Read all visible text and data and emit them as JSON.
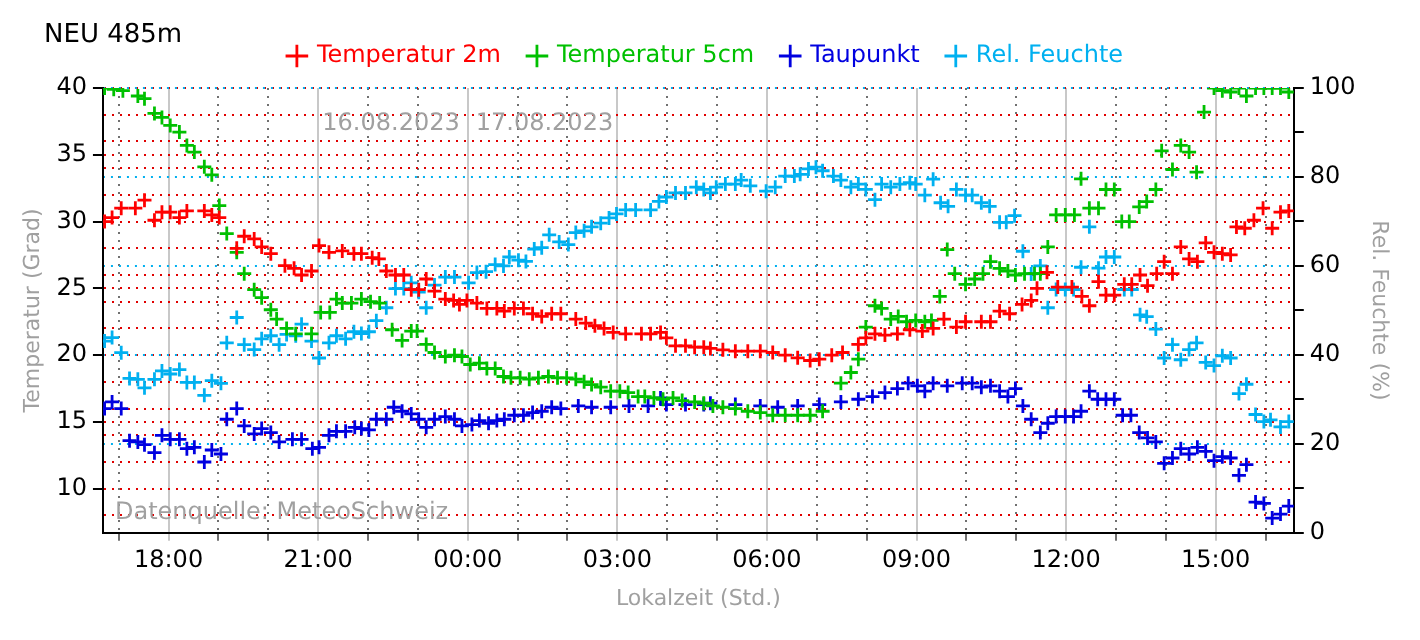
{
  "chart_data": {
    "type": "scatter",
    "title": "NEU 485m",
    "ylabel": "Temperatur (Grad)",
    "y2label": "Rel. Feuchte (%)",
    "xlabel": "Lokalzeit (Std.)",
    "annotations": [
      "16.08.2023",
      "17.08.2023",
      "Datenquelle: MeteoSchweiz"
    ],
    "marker": "cross",
    "grid": true,
    "legend": "top",
    "xlim": [
      "2023-08-16T16:41",
      "2023-08-17T16:34"
    ],
    "xticks": [
      {
        "value": "2023-08-16T17:00",
        "label": null
      },
      {
        "value": "2023-08-16T18:00",
        "label": "18:00"
      },
      {
        "value": "2023-08-16T19:00",
        "label": null
      },
      {
        "value": "2023-08-16T20:00",
        "label": null
      },
      {
        "value": "2023-08-16T21:00",
        "label": "21:00"
      },
      {
        "value": "2023-08-16T22:00",
        "label": null
      },
      {
        "value": "2023-08-16T23:00",
        "label": null
      },
      {
        "value": "2023-08-17T00:00",
        "label": "00:00"
      },
      {
        "value": "2023-08-17T01:00",
        "label": null
      },
      {
        "value": "2023-08-17T02:00",
        "label": null
      },
      {
        "value": "2023-08-17T03:00",
        "label": "03:00"
      },
      {
        "value": "2023-08-17T04:00",
        "label": null
      },
      {
        "value": "2023-08-17T05:00",
        "label": null
      },
      {
        "value": "2023-08-17T06:00",
        "label": "06:00"
      },
      {
        "value": "2023-08-17T07:00",
        "label": null
      },
      {
        "value": "2023-08-17T08:00",
        "label": null
      },
      {
        "value": "2023-08-17T09:00",
        "label": "09:00"
      },
      {
        "value": "2023-08-17T10:00",
        "label": null
      },
      {
        "value": "2023-08-17T11:00",
        "label": null
      },
      {
        "value": "2023-08-17T12:00",
        "label": "12:00"
      },
      {
        "value": "2023-08-17T13:00",
        "label": null
      },
      {
        "value": "2023-08-17T14:00",
        "label": null
      },
      {
        "value": "2023-08-17T15:00",
        "label": "15:00"
      },
      {
        "value": "2023-08-17T16:00",
        "label": null
      }
    ],
    "ylim": [
      6.7,
      40
    ],
    "yticks": [
      {
        "value": 8,
        "label": null
      },
      10,
      {
        "value": 12,
        "label": null
      },
      {
        "value": 14,
        "label": null
      },
      15,
      {
        "value": 16,
        "label": null
      },
      {
        "value": 18,
        "label": null
      },
      20,
      {
        "value": 22,
        "label": null
      },
      {
        "value": 24,
        "label": null
      },
      25,
      {
        "value": 26,
        "label": null
      },
      {
        "value": 28,
        "label": null
      },
      30,
      {
        "value": 32,
        "label": null
      },
      {
        "value": 34,
        "label": null
      },
      35,
      {
        "value": 36,
        "label": null
      },
      {
        "value": 38,
        "label": null
      },
      40
    ],
    "y2lim": [
      0,
      100
    ],
    "y2ticks": [
      0,
      {
        "value": 10,
        "label": null
      },
      20,
      {
        "value": 30,
        "label": null
      },
      40,
      {
        "value": 50,
        "label": null
      },
      60,
      {
        "value": 70,
        "label": null
      },
      80,
      {
        "value": 90,
        "label": null
      },
      100
    ],
    "series": [
      {
        "name": "Temperatur 2m",
        "color": "#ff0000",
        "x": [
          "2023-08-16T16:43",
          "2023-08-16T16:52",
          "2023-08-16T17:03",
          "2023-08-16T17:20",
          "2023-08-16T17:31",
          "2023-08-16T17:43",
          "2023-08-16T17:52",
          "2023-08-16T18:02",
          "2023-08-16T18:13",
          "2023-08-16T18:22",
          "2023-08-16T18:43",
          "2023-08-16T18:52",
          "2023-08-16T19:01",
          "2023-08-16T19:22",
          "2023-08-16T19:31",
          "2023-08-16T19:43",
          "2023-08-16T19:52",
          "2023-08-16T20:03",
          "2023-08-16T20:20",
          "2023-08-16T20:31",
          "2023-08-16T20:40",
          "2023-08-16T20:52",
          "2023-08-16T21:01",
          "2023-08-16T21:13",
          "2023-08-16T21:29",
          "2023-08-16T21:43",
          "2023-08-16T21:52",
          "2023-08-16T22:05",
          "2023-08-16T22:13",
          "2023-08-16T22:22",
          "2023-08-16T22:33",
          "2023-08-16T22:43",
          "2023-08-16T22:52",
          "2023-08-16T23:01",
          "2023-08-16T23:10",
          "2023-08-16T23:20",
          "2023-08-16T23:33",
          "2023-08-16T23:43",
          "2023-08-16T23:50",
          "2023-08-16T23:59",
          "2023-08-17T00:11",
          "2023-08-17T00:23",
          "2023-08-17T00:35",
          "2023-08-17T00:44",
          "2023-08-17T00:56",
          "2023-08-17T01:07",
          "2023-08-17T01:18",
          "2023-08-17T01:29",
          "2023-08-17T01:41",
          "2023-08-17T01:52",
          "2023-08-17T02:10",
          "2023-08-17T02:22",
          "2023-08-17T02:33",
          "2023-08-17T02:44",
          "2023-08-17T02:55",
          "2023-08-17T03:10",
          "2023-08-17T03:29",
          "2023-08-17T03:40",
          "2023-08-17T03:52",
          "2023-08-17T03:59",
          "2023-08-17T04:10",
          "2023-08-17T04:22",
          "2023-08-17T04:33",
          "2023-08-17T04:44",
          "2023-08-17T04:52",
          "2023-08-17T05:07",
          "2023-08-17T05:22",
          "2023-08-17T05:37",
          "2023-08-17T05:52",
          "2023-08-17T06:07",
          "2023-08-17T06:22",
          "2023-08-17T06:37",
          "2023-08-17T06:52",
          "2023-08-17T07:03",
          "2023-08-17T07:18",
          "2023-08-17T07:31",
          "2023-08-17T07:50",
          "2023-08-17T07:59",
          "2023-08-17T08:10",
          "2023-08-17T08:22",
          "2023-08-17T08:37",
          "2023-08-17T08:52",
          "2023-08-17T09:07",
          "2023-08-17T09:20",
          "2023-08-17T09:33",
          "2023-08-17T09:48",
          "2023-08-17T09:59",
          "2023-08-17T10:18",
          "2023-08-17T10:29",
          "2023-08-17T10:40",
          "2023-08-17T10:52",
          "2023-08-17T11:07",
          "2023-08-17T11:18",
          "2023-08-17T11:25",
          "2023-08-17T11:37",
          "2023-08-17T11:50",
          "2023-08-17T12:07",
          "2023-08-17T12:19",
          "2023-08-17T12:28",
          "2023-08-17T12:39",
          "2023-08-17T12:48",
          "2023-08-17T12:58",
          "2023-08-17T13:10",
          "2023-08-17T13:19",
          "2023-08-17T13:29",
          "2023-08-17T13:38",
          "2023-08-17T13:49",
          "2023-08-17T13:58",
          "2023-08-17T14:08",
          "2023-08-17T14:18",
          "2023-08-17T14:28",
          "2023-08-17T14:38",
          "2023-08-17T14:48",
          "2023-08-17T14:58",
          "2023-08-17T15:08",
          "2023-08-17T15:18",
          "2023-08-17T15:25",
          "2023-08-17T15:35",
          "2023-08-17T15:46",
          "2023-08-17T15:57",
          "2023-08-17T16:08",
          "2023-08-17T16:18",
          "2023-08-17T16:28"
        ],
        "values": [
          30.0,
          30.3,
          31.0,
          31.0,
          31.6,
          30.1,
          30.7,
          30.7,
          30.3,
          30.8,
          30.8,
          30.5,
          30.3,
          28.0,
          28.9,
          28.7,
          28.1,
          27.6,
          26.7,
          26.5,
          26.0,
          26.3,
          28.2,
          27.7,
          27.8,
          27.6,
          27.6,
          27.3,
          27.2,
          26.3,
          26.0,
          26.0,
          24.9,
          24.9,
          25.7,
          24.8,
          24.2,
          24.1,
          23.8,
          24.1,
          23.9,
          23.5,
          23.5,
          23.3,
          23.5,
          23.5,
          23.1,
          22.9,
          23.1,
          23.1,
          22.7,
          22.4,
          22.2,
          22.0,
          21.7,
          21.6,
          21.6,
          21.6,
          21.7,
          21.3,
          20.7,
          20.7,
          20.6,
          20.6,
          20.5,
          20.4,
          20.3,
          20.3,
          20.3,
          20.2,
          20.0,
          19.8,
          19.6,
          19.7,
          20.0,
          20.2,
          20.8,
          21.3,
          21.6,
          21.5,
          21.6,
          21.9,
          21.8,
          22.0,
          22.7,
          22.1,
          22.5,
          22.5,
          22.5,
          23.3,
          23.1,
          23.8,
          24.1,
          25.0,
          26.2,
          25.1,
          25.1,
          24.4,
          23.7,
          25.5,
          24.5,
          24.5,
          25.3,
          25.3,
          26.0,
          25.2,
          26.1,
          27.0,
          26.1,
          28.1,
          27.2,
          27.0,
          28.4,
          27.7,
          27.6,
          27.5,
          29.6,
          29.5,
          30.1,
          31.0,
          29.5,
          30.7,
          30.8
        ]
      },
      {
        "name": "Temperatur 5cm",
        "color": "#00c000",
        "x": [
          "2023-08-16T16:43",
          "2023-08-16T16:54",
          "2023-08-16T17:05",
          "2023-08-16T17:23",
          "2023-08-16T17:31",
          "2023-08-16T17:43",
          "2023-08-16T17:52",
          "2023-08-16T18:02",
          "2023-08-16T18:13",
          "2023-08-16T18:22",
          "2023-08-16T18:31",
          "2023-08-16T18:43",
          "2023-08-16T18:52",
          "2023-08-16T19:01",
          "2023-08-16T19:10",
          "2023-08-16T19:22",
          "2023-08-16T19:31",
          "2023-08-16T19:43",
          "2023-08-16T19:52",
          "2023-08-16T20:03",
          "2023-08-16T20:10",
          "2023-08-16T20:22",
          "2023-08-16T20:33",
          "2023-08-16T20:52",
          "2023-08-16T21:03",
          "2023-08-16T21:14",
          "2023-08-16T21:22",
          "2023-08-16T21:29",
          "2023-08-16T21:40",
          "2023-08-16T21:52",
          "2023-08-16T22:03",
          "2023-08-16T22:14",
          "2023-08-16T22:29",
          "2023-08-16T22:41",
          "2023-08-16T22:52",
          "2023-08-16T22:59",
          "2023-08-16T23:10",
          "2023-08-16T23:20",
          "2023-08-16T23:33",
          "2023-08-16T23:44",
          "2023-08-16T23:53",
          "2023-08-17T00:03",
          "2023-08-17T00:14",
          "2023-08-17T00:23",
          "2023-08-17T00:33",
          "2023-08-17T00:43",
          "2023-08-17T00:52",
          "2023-08-17T01:03",
          "2023-08-17T01:14",
          "2023-08-17T01:25",
          "2023-08-17T01:37",
          "2023-08-17T01:48",
          "2023-08-17T01:59",
          "2023-08-17T02:10",
          "2023-08-17T02:20",
          "2023-08-17T02:29",
          "2023-08-17T02:40",
          "2023-08-17T02:52",
          "2023-08-17T03:03",
          "2023-08-17T03:13",
          "2023-08-17T03:25",
          "2023-08-17T03:33",
          "2023-08-17T03:44",
          "2023-08-17T03:55",
          "2023-08-17T04:07",
          "2023-08-17T04:18",
          "2023-08-17T04:33",
          "2023-08-17T04:44",
          "2023-08-17T04:55",
          "2023-08-17T05:07",
          "2023-08-17T05:22",
          "2023-08-17T05:37",
          "2023-08-17T05:52",
          "2023-08-17T06:07",
          "2023-08-17T06:22",
          "2023-08-17T06:37",
          "2023-08-17T06:52",
          "2023-08-17T07:07",
          "2023-08-17T07:29",
          "2023-08-17T07:41",
          "2023-08-17T07:50",
          "2023-08-17T07:59",
          "2023-08-17T08:10",
          "2023-08-17T08:18",
          "2023-08-17T08:29",
          "2023-08-17T08:38",
          "2023-08-17T08:48",
          "2023-08-17T08:59",
          "2023-08-17T09:10",
          "2023-08-17T09:18",
          "2023-08-17T09:28",
          "2023-08-17T09:37",
          "2023-08-17T09:46",
          "2023-08-17T09:59",
          "2023-08-17T10:10",
          "2023-08-17T10:20",
          "2023-08-17T10:29",
          "2023-08-17T10:40",
          "2023-08-17T10:50",
          "2023-08-17T10:59",
          "2023-08-17T11:10",
          "2023-08-17T11:22",
          "2023-08-17T11:29",
          "2023-08-17T11:38",
          "2023-08-17T11:48",
          "2023-08-17T11:59",
          "2023-08-17T12:10",
          "2023-08-17T12:18",
          "2023-08-17T12:28",
          "2023-08-17T12:39",
          "2023-08-17T12:48",
          "2023-08-17T12:58",
          "2023-08-17T13:07",
          "2023-08-17T13:16",
          "2023-08-17T13:28",
          "2023-08-17T13:37",
          "2023-08-17T13:48",
          "2023-08-17T13:55",
          "2023-08-17T14:08",
          "2023-08-17T14:18",
          "2023-08-17T14:28",
          "2023-08-17T14:37",
          "2023-08-17T14:46",
          "2023-08-17T14:58",
          "2023-08-17T15:08",
          "2023-08-17T15:18",
          "2023-08-17T15:28",
          "2023-08-17T15:37",
          "2023-08-17T15:48",
          "2023-08-17T15:58",
          "2023-08-17T16:08",
          "2023-08-17T16:18",
          "2023-08-17T16:28"
        ],
        "values": [
          40.0,
          39.9,
          39.8,
          39.4,
          39.2,
          38.1,
          37.8,
          37.2,
          36.7,
          35.7,
          35.2,
          34.1,
          33.5,
          31.2,
          29.1,
          27.7,
          26.1,
          24.9,
          24.3,
          23.4,
          22.7,
          22.0,
          21.6,
          21.6,
          23.2,
          23.2,
          24.2,
          23.9,
          23.9,
          24.2,
          24.0,
          23.9,
          21.9,
          21.1,
          21.8,
          21.8,
          20.8,
          20.2,
          19.9,
          20.0,
          19.9,
          19.3,
          19.4,
          19.0,
          19.0,
          18.4,
          18.3,
          18.3,
          18.2,
          18.3,
          18.4,
          18.3,
          18.3,
          18.2,
          18.0,
          17.8,
          17.6,
          17.3,
          17.3,
          17.2,
          16.9,
          16.9,
          16.8,
          16.7,
          16.8,
          16.6,
          16.5,
          16.4,
          16.2,
          16.1,
          16.0,
          15.8,
          15.7,
          15.5,
          15.5,
          15.5,
          15.5,
          15.8,
          17.9,
          18.7,
          19.7,
          22.1,
          23.7,
          23.5,
          22.7,
          22.9,
          22.5,
          22.6,
          22.5,
          22.6,
          24.4,
          27.9,
          26.1,
          25.3,
          25.7,
          26.1,
          27.0,
          26.5,
          26.3,
          26.0,
          26.1,
          26.1,
          26.1,
          28.1,
          30.5,
          30.5,
          30.5,
          33.2,
          31.0,
          31.0,
          32.4,
          32.4,
          30.0,
          30.0,
          31.1,
          31.5,
          32.4,
          35.3,
          33.9,
          35.7,
          35.2,
          33.7,
          38.2,
          40.0,
          39.8,
          39.7,
          40.0,
          39.4,
          40.0,
          40.0,
          40.0,
          40.0,
          39.7
        ]
      },
      {
        "name": "Taupunkt",
        "color": "#0000e0",
        "x": [
          "2023-08-16T16:43",
          "2023-08-16T16:52",
          "2023-08-16T17:03",
          "2023-08-16T17:13",
          "2023-08-16T17:23",
          "2023-08-16T17:31",
          "2023-08-16T17:43",
          "2023-08-16T17:52",
          "2023-08-16T18:02",
          "2023-08-16T18:13",
          "2023-08-16T18:22",
          "2023-08-16T18:31",
          "2023-08-16T18:43",
          "2023-08-16T18:52",
          "2023-08-16T19:03",
          "2023-08-16T19:10",
          "2023-08-16T19:22",
          "2023-08-16T19:31",
          "2023-08-16T19:43",
          "2023-08-16T19:52",
          "2023-08-16T20:03",
          "2023-08-16T20:13",
          "2023-08-16T20:29",
          "2023-08-16T20:40",
          "2023-08-16T20:53",
          "2023-08-16T21:01",
          "2023-08-16T21:13",
          "2023-08-16T21:22",
          "2023-08-16T21:33",
          "2023-08-16T21:44",
          "2023-08-16T21:52",
          "2023-08-16T22:01",
          "2023-08-16T22:10",
          "2023-08-16T22:22",
          "2023-08-16T22:31",
          "2023-08-16T22:41",
          "2023-08-16T22:52",
          "2023-08-16T23:01",
          "2023-08-16T23:10",
          "2023-08-16T23:20",
          "2023-08-16T23:33",
          "2023-08-16T23:44",
          "2023-08-16T23:53",
          "2023-08-17T00:05",
          "2023-08-17T00:14",
          "2023-08-17T00:25",
          "2023-08-17T00:35",
          "2023-08-17T00:44",
          "2023-08-17T00:56",
          "2023-08-17T01:07",
          "2023-08-17T01:18",
          "2023-08-17T01:29",
          "2023-08-17T01:41",
          "2023-08-17T01:52",
          "2023-08-17T02:13",
          "2023-08-17T02:29",
          "2023-08-17T02:52",
          "2023-08-17T03:14",
          "2023-08-17T03:37",
          "2023-08-17T03:52",
          "2023-08-17T03:59",
          "2023-08-17T04:22",
          "2023-08-17T04:44",
          "2023-08-17T04:52",
          "2023-08-17T05:22",
          "2023-08-17T05:52",
          "2023-08-17T06:13",
          "2023-08-17T06:37",
          "2023-08-17T07:03",
          "2023-08-17T07:29",
          "2023-08-17T07:50",
          "2023-08-17T08:07",
          "2023-08-17T08:22",
          "2023-08-17T08:37",
          "2023-08-17T08:50",
          "2023-08-17T09:01",
          "2023-08-17T09:10",
          "2023-08-17T09:20",
          "2023-08-17T09:37",
          "2023-08-17T09:55",
          "2023-08-17T10:07",
          "2023-08-17T10:18",
          "2023-08-17T10:29",
          "2023-08-17T10:40",
          "2023-08-17T10:50",
          "2023-08-17T10:59",
          "2023-08-17T11:08",
          "2023-08-17T11:18",
          "2023-08-17T11:29",
          "2023-08-17T11:38",
          "2023-08-17T11:48",
          "2023-08-17T11:59",
          "2023-08-17T12:09",
          "2023-08-17T12:18",
          "2023-08-17T12:28",
          "2023-08-17T12:38",
          "2023-08-17T12:48",
          "2023-08-17T12:58",
          "2023-08-17T13:08",
          "2023-08-17T13:18",
          "2023-08-17T13:28",
          "2023-08-17T13:38",
          "2023-08-17T13:48",
          "2023-08-17T13:58",
          "2023-08-17T14:08",
          "2023-08-17T14:18",
          "2023-08-17T14:28",
          "2023-08-17T14:38",
          "2023-08-17T14:48",
          "2023-08-17T14:58",
          "2023-08-17T15:08",
          "2023-08-17T15:18",
          "2023-08-17T15:28",
          "2023-08-17T15:37",
          "2023-08-17T15:48",
          "2023-08-17T15:58",
          "2023-08-17T16:08",
          "2023-08-17T16:18",
          "2023-08-17T16:28"
        ],
        "values": [
          16.0,
          16.5,
          16.0,
          13.6,
          13.5,
          13.3,
          12.7,
          14.0,
          13.7,
          13.7,
          13.0,
          13.1,
          12.0,
          12.9,
          12.6,
          15.2,
          16.0,
          14.7,
          14.1,
          14.5,
          14.2,
          13.5,
          13.7,
          13.7,
          13.0,
          13.1,
          14.0,
          14.3,
          14.3,
          14.6,
          14.5,
          14.4,
          15.2,
          15.2,
          16.1,
          15.8,
          15.6,
          15.2,
          14.6,
          15.2,
          15.4,
          15.2,
          14.7,
          14.8,
          15.1,
          14.9,
          15.1,
          15.2,
          15.5,
          15.5,
          15.7,
          15.8,
          16.1,
          16.0,
          16.2,
          16.1,
          16.1,
          16.2,
          16.2,
          16.8,
          16.3,
          16.3,
          16.3,
          16.4,
          16.3,
          16.2,
          16.1,
          16.2,
          16.3,
          16.5,
          16.7,
          16.9,
          17.2,
          17.5,
          17.9,
          17.7,
          17.3,
          17.9,
          17.7,
          17.9,
          17.9,
          17.6,
          17.7,
          17.3,
          16.9,
          17.5,
          16.2,
          15.2,
          14.2,
          14.9,
          15.4,
          15.4,
          15.4,
          15.8,
          17.3,
          16.7,
          16.7,
          16.7,
          15.5,
          15.5,
          14.2,
          13.8,
          13.5,
          11.9,
          12.3,
          13.0,
          12.6,
          13.1,
          12.8,
          12.1,
          12.4,
          12.3,
          11.0,
          11.8,
          9.0,
          8.9,
          7.8,
          8.1,
          8.7
        ]
      },
      {
        "name": "Rel. Feuchte",
        "color": "#00b0f0",
        "axis": "y2",
        "x": [
          "2023-08-16T16:43",
          "2023-08-16T16:52",
          "2023-08-16T17:03",
          "2023-08-16T17:13",
          "2023-08-16T17:23",
          "2023-08-16T17:31",
          "2023-08-16T17:43",
          "2023-08-16T17:52",
          "2023-08-16T18:02",
          "2023-08-16T18:13",
          "2023-08-16T18:22",
          "2023-08-16T18:31",
          "2023-08-16T18:43",
          "2023-08-16T18:52",
          "2023-08-16T19:03",
          "2023-08-16T19:10",
          "2023-08-16T19:22",
          "2023-08-16T19:31",
          "2023-08-16T19:43",
          "2023-08-16T19:52",
          "2023-08-16T20:03",
          "2023-08-16T20:13",
          "2023-08-16T20:22",
          "2023-08-16T20:33",
          "2023-08-16T20:40",
          "2023-08-16T20:52",
          "2023-08-16T21:01",
          "2023-08-16T21:13",
          "2023-08-16T21:22",
          "2023-08-16T21:33",
          "2023-08-16T21:43",
          "2023-08-16T21:52",
          "2023-08-16T22:01",
          "2023-08-16T22:10",
          "2023-08-16T22:22",
          "2023-08-16T22:33",
          "2023-08-16T22:43",
          "2023-08-16T22:52",
          "2023-08-16T23:01",
          "2023-08-16T23:10",
          "2023-08-16T23:20",
          "2023-08-16T23:33",
          "2023-08-16T23:44",
          "2023-08-17T00:01",
          "2023-08-17T00:11",
          "2023-08-17T00:22",
          "2023-08-17T00:33",
          "2023-08-17T00:43",
          "2023-08-17T00:50",
          "2023-08-17T01:01",
          "2023-08-17T01:10",
          "2023-08-17T01:20",
          "2023-08-17T01:29",
          "2023-08-17T01:38",
          "2023-08-17T01:50",
          "2023-08-17T02:01",
          "2023-08-17T02:10",
          "2023-08-17T02:20",
          "2023-08-17T02:29",
          "2023-08-17T02:40",
          "2023-08-17T02:50",
          "2023-08-17T02:59",
          "2023-08-17T03:10",
          "2023-08-17T03:22",
          "2023-08-17T03:40",
          "2023-08-17T03:50",
          "2023-08-17T03:59",
          "2023-08-17T04:10",
          "2023-08-17T04:22",
          "2023-08-17T04:35",
          "2023-08-17T04:44",
          "2023-08-17T04:52",
          "2023-08-17T04:59",
          "2023-08-17T05:10",
          "2023-08-17T05:22",
          "2023-08-17T05:29",
          "2023-08-17T05:40",
          "2023-08-17T05:59",
          "2023-08-17T06:10",
          "2023-08-17T06:22",
          "2023-08-17T06:33",
          "2023-08-17T06:40",
          "2023-08-17T06:50",
          "2023-08-17T06:59",
          "2023-08-17T07:07",
          "2023-08-17T07:20",
          "2023-08-17T07:29",
          "2023-08-17T07:41",
          "2023-08-17T07:50",
          "2023-08-17T07:59",
          "2023-08-17T08:10",
          "2023-08-17T08:18",
          "2023-08-17T08:29",
          "2023-08-17T08:40",
          "2023-08-17T08:52",
          "2023-08-17T08:59",
          "2023-08-17T09:10",
          "2023-08-17T09:20",
          "2023-08-17T09:29",
          "2023-08-17T09:38",
          "2023-08-17T09:48",
          "2023-08-17T09:59",
          "2023-08-17T10:07",
          "2023-08-17T10:18",
          "2023-08-17T10:28",
          "2023-08-17T10:40",
          "2023-08-17T10:48",
          "2023-08-17T10:58",
          "2023-08-17T11:08",
          "2023-08-17T11:18",
          "2023-08-17T11:29",
          "2023-08-17T11:38",
          "2023-08-17T11:48",
          "2023-08-17T11:59",
          "2023-08-17T12:09",
          "2023-08-17T12:18",
          "2023-08-17T12:28",
          "2023-08-17T12:39",
          "2023-08-17T12:48",
          "2023-08-17T12:58",
          "2023-08-17T13:10",
          "2023-08-17T13:19",
          "2023-08-17T13:29",
          "2023-08-17T13:37",
          "2023-08-17T13:48",
          "2023-08-17T13:58",
          "2023-08-17T14:08",
          "2023-08-17T14:18",
          "2023-08-17T14:28",
          "2023-08-17T14:37",
          "2023-08-17T14:48",
          "2023-08-17T14:58",
          "2023-08-17T15:08",
          "2023-08-17T15:18",
          "2023-08-17T15:28",
          "2023-08-17T15:37",
          "2023-08-17T15:48",
          "2023-08-17T15:58",
          "2023-08-17T16:06",
          "2023-08-17T16:18",
          "2023-08-17T16:28"
        ],
        "values": [
          43.1,
          43.9,
          40.5,
          34.7,
          34.5,
          32.6,
          34.5,
          36.4,
          35.7,
          36.7,
          33.8,
          33.8,
          30.9,
          34.2,
          33.6,
          42.7,
          48.4,
          42.3,
          41.2,
          43.6,
          44.3,
          42.3,
          44.6,
          44.3,
          46.9,
          43.1,
          39.3,
          42.7,
          44.3,
          43.6,
          45.2,
          44.8,
          45.2,
          47.7,
          50.6,
          54.9,
          54.9,
          56.2,
          54.1,
          50.6,
          55.7,
          57.5,
          57.5,
          56.2,
          58.5,
          58.7,
          60.3,
          60.0,
          62.0,
          61.3,
          61.0,
          63.8,
          64.1,
          67.0,
          65.4,
          64.8,
          67.5,
          67.9,
          68.8,
          69.6,
          70.8,
          71.7,
          72.6,
          72.6,
          72.6,
          74.5,
          75.5,
          76.4,
          76.4,
          77.7,
          77.2,
          76.4,
          77.7,
          78.4,
          78.4,
          79.3,
          78.0,
          76.8,
          77.7,
          80.2,
          80.2,
          80.6,
          81.8,
          82.2,
          81.4,
          80.2,
          79.3,
          77.7,
          78.4,
          77.2,
          74.9,
          78.4,
          77.7,
          78.4,
          78.7,
          78.4,
          75.9,
          79.5,
          74.2,
          73.4,
          77.2,
          75.9,
          75.9,
          74.2,
          73.4,
          69.8,
          69.8,
          71.3,
          63.3,
          58.2,
          60.0,
          50.6,
          54.7,
          54.7,
          54.7,
          59.7,
          68.8,
          59.5,
          62.0,
          62.0,
          54.7,
          54.7,
          49.0,
          48.6,
          45.8,
          39.3,
          42.3,
          38.9,
          41.2,
          42.7,
          38.3,
          37.6,
          39.8,
          39.3,
          31.3,
          33.4,
          26.6,
          25.0,
          25.4,
          23.8,
          25.0
        ]
      }
    ]
  }
}
